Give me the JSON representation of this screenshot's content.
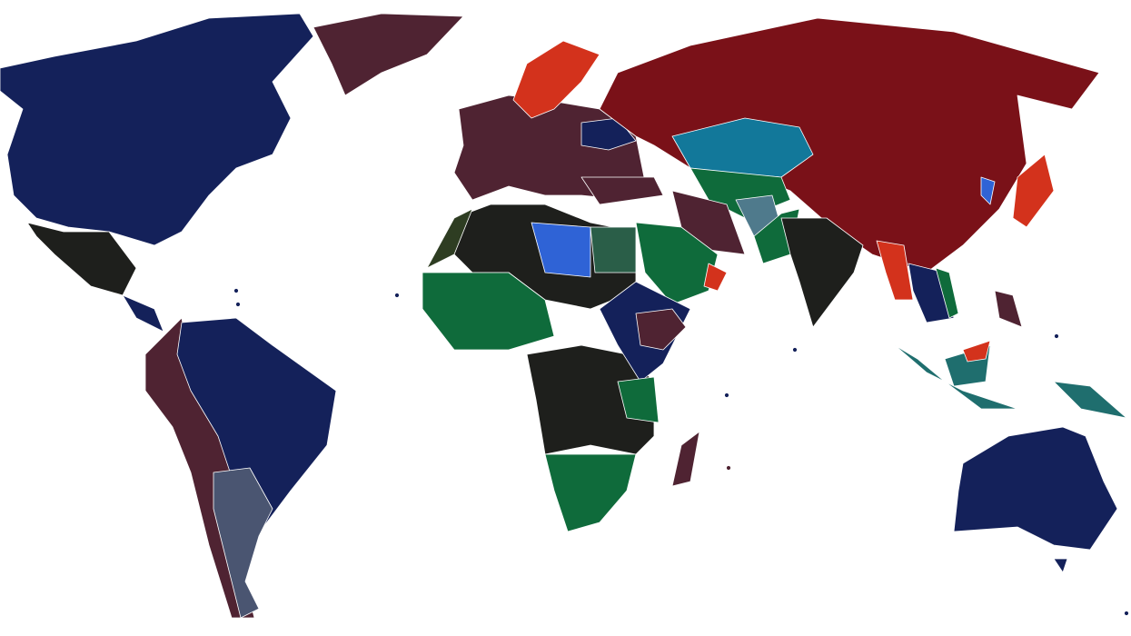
{
  "map": {
    "background": "#ffffff",
    "border_color": "#ffffff",
    "colors": {
      "navy": "#14215a",
      "maroon": "#4f2332",
      "dark_red": "#7a1118",
      "black": "#1e1f1c",
      "green": "#0f6b3b",
      "dark_green": "#2a5e48",
      "teal": "#1f6e6e",
      "blue": "#2f63d6",
      "cerulean": "#12789a",
      "red": "#d3321c",
      "slate": "#4a5571",
      "grey_teal": "#4f7a8c",
      "olive": "#2e3d22"
    }
  }
}
